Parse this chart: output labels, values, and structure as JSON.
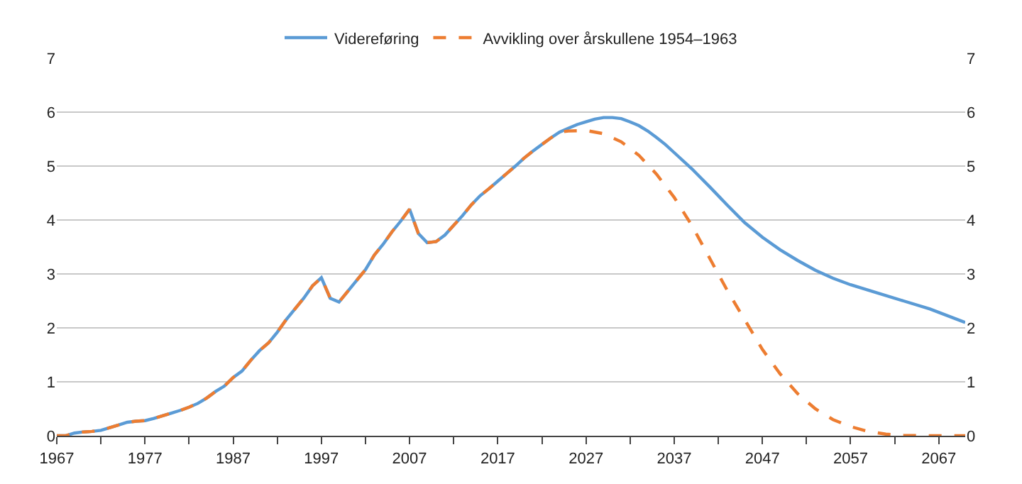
{
  "chart_data": {
    "type": "line",
    "xlim": [
      1967,
      2070
    ],
    "xticks": [
      1967,
      {
        "value": 1972,
        "label": null
      },
      1977,
      {
        "value": 1982,
        "label": null
      },
      1987,
      {
        "value": 1992,
        "label": null
      },
      1997,
      {
        "value": 2002,
        "label": null
      },
      2007,
      {
        "value": 2012,
        "label": null
      },
      2017,
      {
        "value": 2022,
        "label": null
      },
      2027,
      {
        "value": 2032,
        "label": null
      },
      2037,
      {
        "value": 2042,
        "label": null
      },
      2047,
      {
        "value": 2052,
        "label": null
      },
      2057,
      {
        "value": 2062,
        "label": null
      },
      2067
    ],
    "ylim": [
      0,
      7
    ],
    "yticks": [
      0,
      1,
      2,
      3,
      4,
      5,
      6,
      7
    ],
    "y2lim": [
      0,
      7
    ],
    "y2ticks": [
      0,
      1,
      2,
      3,
      4,
      5,
      6,
      7
    ],
    "grid": "y",
    "legend": "top",
    "marker": "none",
    "series": [
      {
        "name": "Videreføring",
        "color": "#5b9bd5",
        "line_style": "solid",
        "x": [
          1967,
          1968,
          1969,
          1970,
          1971,
          1972,
          1973,
          1974,
          1975,
          1976,
          1977,
          1978,
          1979,
          1980,
          1981,
          1982,
          1983,
          1984,
          1985,
          1986,
          1987,
          1988,
          1989,
          1990,
          1991,
          1992,
          1993,
          1994,
          1995,
          1996,
          1997,
          1998,
          1999,
          2000,
          2001,
          2002,
          2003,
          2004,
          2005,
          2006,
          2007,
          2008,
          2009,
          2010,
          2011,
          2012,
          2013,
          2014,
          2015,
          2016,
          2017,
          2018,
          2019,
          2020,
          2021,
          2022,
          2023,
          2024,
          2025,
          2026,
          2027,
          2028,
          2029,
          2030,
          2031,
          2032,
          2033,
          2034,
          2035,
          2036,
          2037,
          2039,
          2041,
          2043,
          2045,
          2047,
          2049,
          2051,
          2053,
          2055,
          2057,
          2060,
          2063,
          2066,
          2070
        ],
        "values": [
          0.0,
          0.0,
          0.05,
          0.07,
          0.08,
          0.1,
          0.15,
          0.2,
          0.25,
          0.27,
          0.28,
          0.32,
          0.37,
          0.42,
          0.47,
          0.53,
          0.6,
          0.7,
          0.82,
          0.92,
          1.08,
          1.2,
          1.4,
          1.58,
          1.72,
          1.92,
          2.15,
          2.35,
          2.55,
          2.78,
          2.93,
          2.55,
          2.48,
          2.68,
          2.88,
          3.08,
          3.35,
          3.55,
          3.78,
          3.98,
          4.2,
          3.75,
          3.58,
          3.6,
          3.72,
          3.9,
          4.08,
          4.28,
          4.45,
          4.58,
          4.72,
          4.86,
          5.0,
          5.15,
          5.28,
          5.4,
          5.52,
          5.63,
          5.7,
          5.77,
          5.82,
          5.87,
          5.9,
          5.9,
          5.88,
          5.82,
          5.75,
          5.65,
          5.53,
          5.4,
          5.25,
          4.95,
          4.62,
          4.28,
          3.95,
          3.68,
          3.45,
          3.25,
          3.07,
          2.92,
          2.8,
          2.65,
          2.5,
          2.35,
          2.1
        ]
      },
      {
        "name": "Avvikling over årskullene 1954–1963",
        "axis": "y2",
        "color": "#ed7d31",
        "line_style": "dashed",
        "x": [
          1967,
          1968,
          1969,
          1970,
          1971,
          1972,
          1973,
          1974,
          1975,
          1976,
          1977,
          1978,
          1979,
          1980,
          1981,
          1982,
          1983,
          1984,
          1985,
          1986,
          1987,
          1988,
          1989,
          1990,
          1991,
          1992,
          1993,
          1994,
          1995,
          1996,
          1997,
          1998,
          1999,
          2000,
          2001,
          2002,
          2003,
          2004,
          2005,
          2006,
          2007,
          2008,
          2009,
          2010,
          2011,
          2012,
          2013,
          2014,
          2015,
          2016,
          2017,
          2018,
          2019,
          2020,
          2021,
          2022,
          2023,
          2024,
          2025,
          2027,
          2029,
          2031,
          2033,
          2035,
          2037,
          2039,
          2041,
          2043,
          2045,
          2047,
          2049,
          2051,
          2053,
          2055,
          2057,
          2059,
          2061,
          2063,
          2066,
          2070
        ],
        "values": [
          0.0,
          0.0,
          0.05,
          0.07,
          0.08,
          0.1,
          0.15,
          0.2,
          0.25,
          0.27,
          0.28,
          0.32,
          0.37,
          0.42,
          0.47,
          0.53,
          0.6,
          0.7,
          0.82,
          0.92,
          1.08,
          1.2,
          1.4,
          1.58,
          1.72,
          1.92,
          2.15,
          2.35,
          2.55,
          2.78,
          2.93,
          2.55,
          2.48,
          2.68,
          2.88,
          3.08,
          3.35,
          3.55,
          3.78,
          3.98,
          4.2,
          3.75,
          3.58,
          3.6,
          3.72,
          3.9,
          4.08,
          4.28,
          4.45,
          4.58,
          4.72,
          4.86,
          5.0,
          5.15,
          5.28,
          5.4,
          5.52,
          5.63,
          5.65,
          5.66,
          5.6,
          5.45,
          5.2,
          4.85,
          4.42,
          3.9,
          3.3,
          2.7,
          2.15,
          1.6,
          1.15,
          0.78,
          0.5,
          0.3,
          0.17,
          0.08,
          0.03,
          0.01,
          0.0,
          0.0
        ]
      }
    ]
  }
}
